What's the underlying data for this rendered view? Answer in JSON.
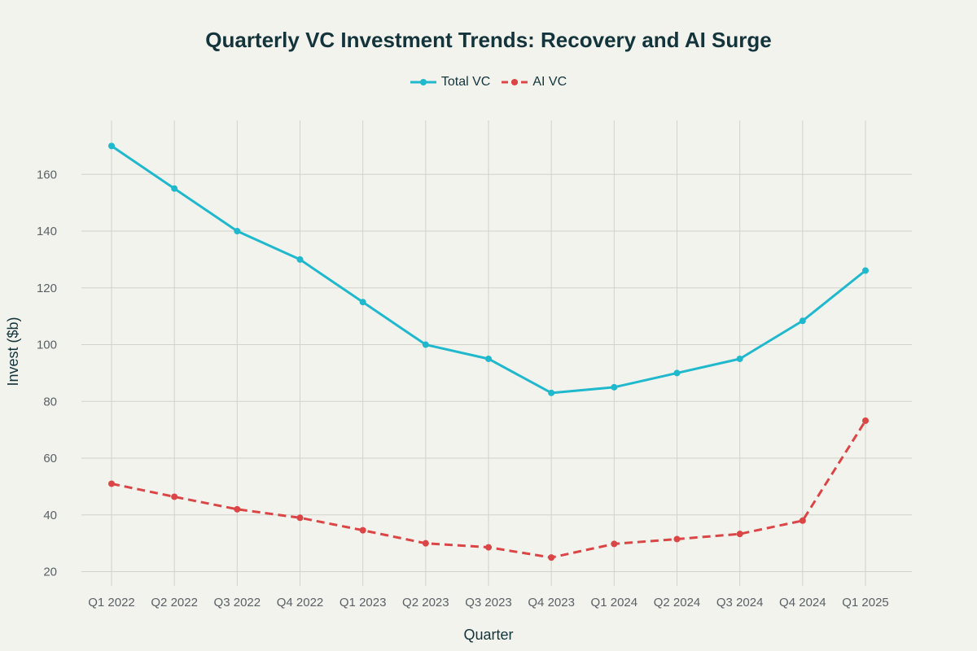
{
  "chart_data": {
    "type": "line",
    "title": "Quarterly VC Investment Trends: Recovery and AI Surge",
    "xlabel": "Quarter",
    "ylabel": "Invest ($b)",
    "categories": [
      "Q1 2022",
      "Q2 2022",
      "Q3 2022",
      "Q4 2022",
      "Q1 2023",
      "Q2 2023",
      "Q3 2023",
      "Q4 2023",
      "Q1 2024",
      "Q2 2024",
      "Q3 2024",
      "Q4 2024",
      "Q1 2025"
    ],
    "series": [
      {
        "name": "Total VC",
        "color": "#1fb8cd",
        "dash": "solid",
        "values": [
          170,
          155,
          140,
          130,
          115,
          100,
          95,
          83,
          85,
          90,
          95,
          108.4,
          126.1
        ]
      },
      {
        "name": "AI VC",
        "color": "#db4545",
        "dash": "dashed",
        "values": [
          51,
          46.4,
          42,
          39,
          34.6,
          30,
          28.6,
          25,
          29.8,
          31.5,
          33.3,
          38,
          73.2
        ]
      }
    ],
    "yticks": [
      20,
      40,
      60,
      80,
      100,
      120,
      140,
      160
    ],
    "ylim": [
      15,
      179
    ],
    "grid": true,
    "legend_position": "top-center"
  }
}
